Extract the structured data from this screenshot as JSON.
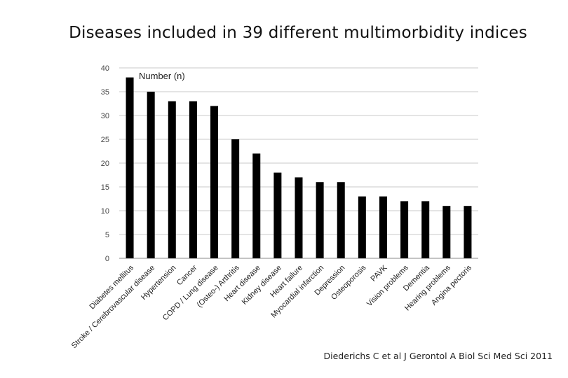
{
  "slide": {
    "title": "Diseases included in 39 different multimorbidity indices",
    "citation": "Diederichs C et al J Gerontol A Biol Sci Med Sci 2011"
  },
  "chart_data": {
    "type": "bar",
    "title": "",
    "legend_label": "Number (n)",
    "legend_position": "top-left",
    "xlabel": "",
    "ylabel": "",
    "ylim": [
      0,
      40
    ],
    "yticks": [
      0,
      5,
      10,
      15,
      20,
      25,
      30,
      35,
      40
    ],
    "grid": true,
    "bar_color": "#000000",
    "categories": [
      "Diabetes mellitus",
      "Stroke / Cerebrovascular disease",
      "Hypertension",
      "Cancer",
      "COPD / Lung disease",
      "(Osteo-) Arthritis",
      "Heart disease",
      "Kidney disease",
      "Heart failure",
      "Myocardial infarction",
      "Depression",
      "Osteoporosis",
      "PAVK",
      "Vision problems",
      "Dementia",
      "Hearing problems",
      "Angina pectoris"
    ],
    "values": [
      38,
      35,
      33,
      33,
      32,
      25,
      22,
      18,
      17,
      16,
      16,
      13,
      13,
      12,
      12,
      11,
      11
    ]
  }
}
